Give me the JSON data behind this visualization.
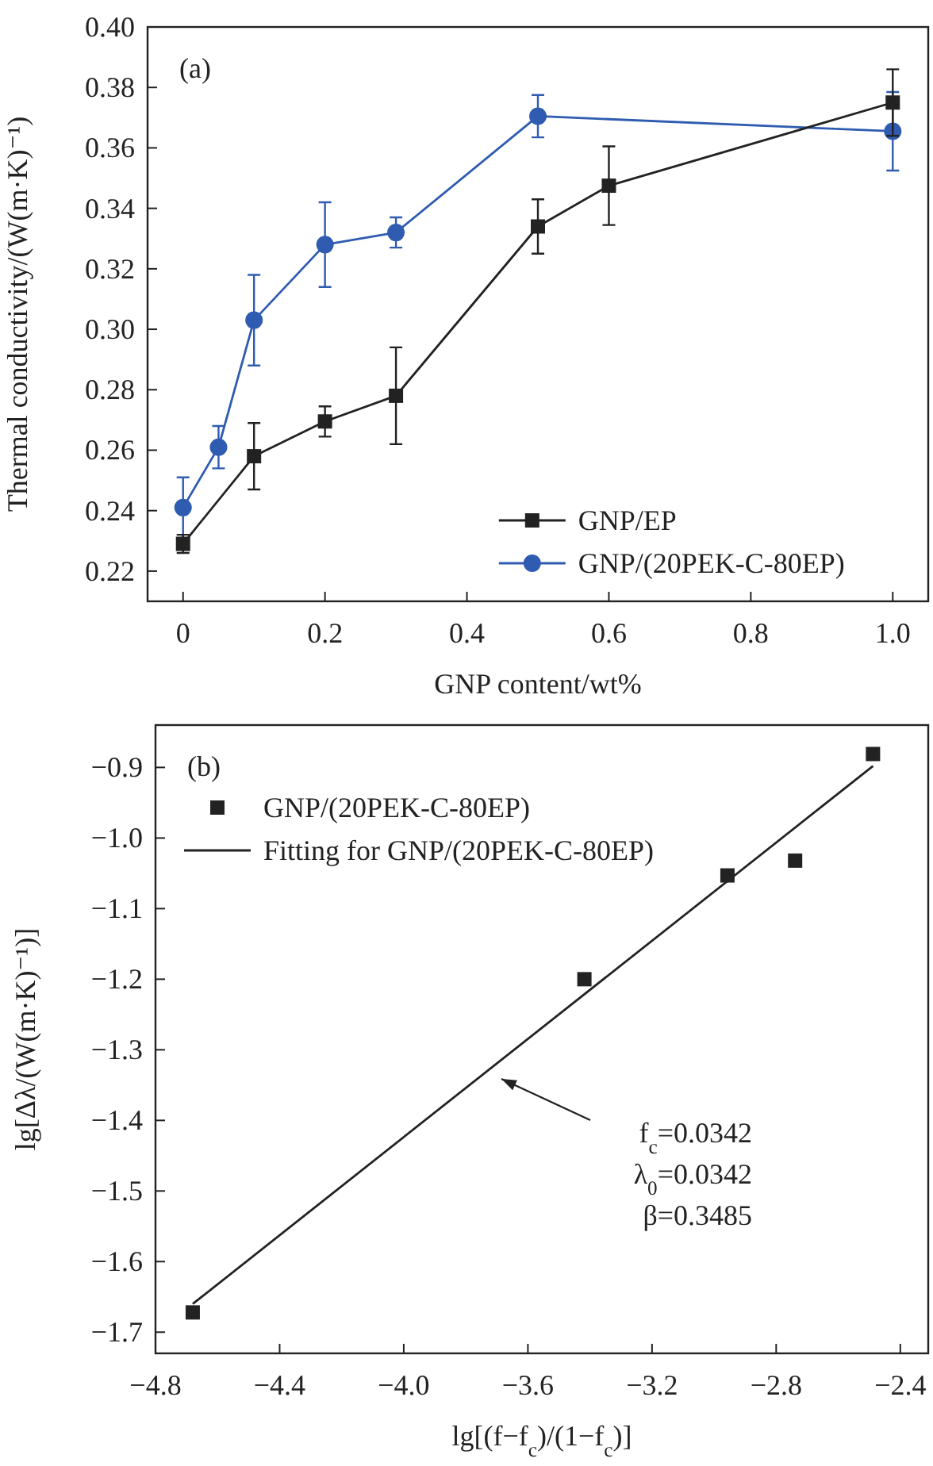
{
  "chart_data": [
    {
      "type": "line",
      "xlabel": "GNP content/wt%",
      "ylabel": "Thermal conductivity/(W(m·K)⁻¹)",
      "annotations": [
        "(a)"
      ],
      "xlim": [
        -0.05,
        1.05
      ],
      "ylim": [
        0.21,
        0.4
      ],
      "xticks": [
        {
          "value": 0,
          "label": "0"
        },
        0.2,
        0.4,
        0.6,
        0.8,
        {
          "value": 1,
          "label": "1.0"
        }
      ],
      "yticks": [
        {
          "value": 0.22,
          "label": "0.22"
        },
        {
          "value": 0.24,
          "label": "0.24"
        },
        {
          "value": 0.26,
          "label": "0.26"
        },
        {
          "value": 0.28,
          "label": "0.28"
        },
        {
          "value": 0.3,
          "label": "0.30"
        },
        {
          "value": 0.32,
          "label": "0.32"
        },
        {
          "value": 0.34,
          "label": "0.34"
        },
        {
          "value": 0.36,
          "label": "0.36"
        },
        {
          "value": 0.38,
          "label": "0.38"
        },
        {
          "value": 0.4,
          "label": "0.40"
        }
      ],
      "legend": "bottom right",
      "line_style": "solid",
      "series": [
        {
          "name": "GNP/EP",
          "color": "#222222",
          "marker": "square",
          "x": [
            0,
            0.1,
            0.2,
            0.3,
            0.5,
            0.6,
            1.0
          ],
          "values": [
            0.229,
            0.258,
            0.2695,
            0.278,
            0.334,
            0.3475,
            0.375
          ],
          "errors": [
            0.003,
            0.011,
            0.005,
            0.016,
            0.009,
            0.013,
            0.011
          ]
        },
        {
          "name": "GNP/(20PEK-C-80EP)",
          "color": "#2f5cb0",
          "marker": "circle",
          "x": [
            0,
            0.05,
            0.1,
            0.2,
            0.3,
            0.5,
            1.0
          ],
          "values": [
            0.241,
            0.261,
            0.303,
            0.328,
            0.332,
            0.3705,
            0.3655
          ],
          "errors": [
            0.01,
            0.007,
            0.015,
            0.014,
            0.005,
            0.007,
            0.013
          ]
        }
      ]
    },
    {
      "type": "scatter",
      "xlabel": "lg[(f−f$_{c}$)/(1−f$_{c}$)]",
      "ylabel": "lg[Δλ/(W(m·K)⁻¹)]",
      "annotations": [
        "(b)",
        "f$_{c}$=0.0342",
        "λ$_{0}$=0.0342",
        "β=0.3485"
      ],
      "xlim": [
        -4.8,
        -2.31
      ],
      "ylim": [
        -1.73,
        -0.84
      ],
      "xticks": [
        {
          "value": -4.8,
          "label": "−4.8"
        },
        {
          "value": -4.4,
          "label": "−4.4"
        },
        {
          "value": -4.0,
          "label": "−4.0"
        },
        {
          "value": -3.6,
          "label": "−3.6"
        },
        {
          "value": -3.2,
          "label": "−3.2"
        },
        {
          "value": -2.8,
          "label": "−2.8"
        },
        {
          "value": -2.4,
          "label": "−2.4"
        }
      ],
      "yticks": [
        {
          "value": -1.7,
          "label": "−1.7"
        },
        {
          "value": -1.6,
          "label": "−1.6"
        },
        {
          "value": -1.5,
          "label": "−1.5"
        },
        {
          "value": -1.4,
          "label": "−1.4"
        },
        {
          "value": -1.3,
          "label": "−1.3"
        },
        {
          "value": -1.2,
          "label": "−1.2"
        },
        {
          "value": -1.1,
          "label": "−1.1"
        },
        {
          "value": -1.0,
          "label": "−1.0"
        },
        {
          "value": -0.9,
          "label": "−0.9"
        }
      ],
      "legend": "top left",
      "series": [
        {
          "name": "GNP/(20PEK-C-80EP)",
          "color": "#222222",
          "marker": "square",
          "x": [
            -4.68,
            -3.418,
            -2.957,
            -2.739,
            -2.488
          ],
          "values": [
            -1.672,
            -1.2,
            -1.053,
            -1.032,
            -0.881
          ]
        },
        {
          "name": "Fitting for GNP/(20PEK-C-80EP)",
          "type": "line",
          "color": "#222222",
          "marker": "none",
          "line_style": "solid",
          "x": [
            -4.68,
            -2.488
          ],
          "values": [
            -1.66,
            -0.898
          ]
        }
      ]
    }
  ]
}
